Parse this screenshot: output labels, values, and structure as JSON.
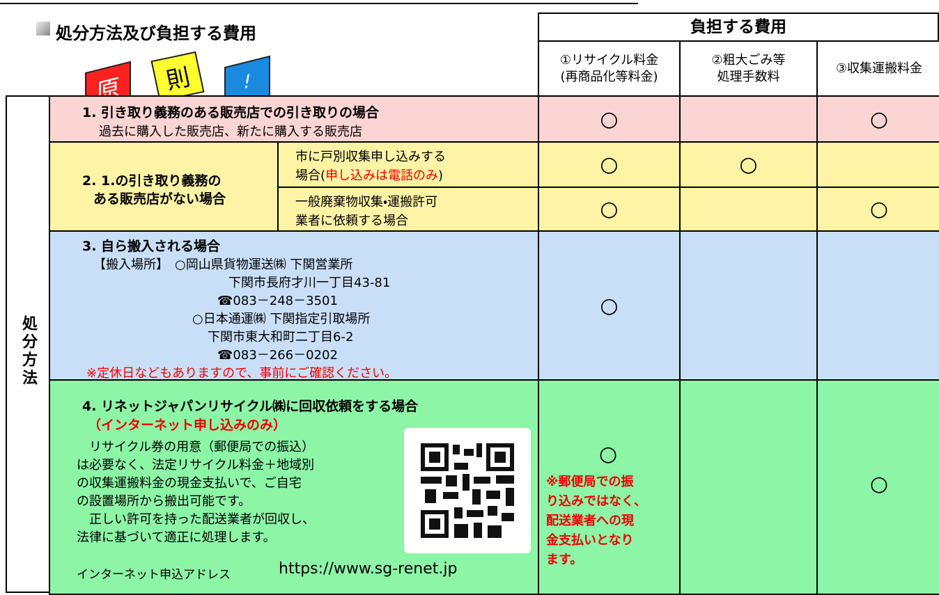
{
  "header": {
    "title": "処分方法及び負担する費用",
    "badges": [
      "原",
      "則",
      "!"
    ],
    "cost_title": "負担する費用",
    "cost_columns": [
      [
        "①リサイクル料金",
        "(再商品化等料金)"
      ],
      [
        "②粗大ごみ等",
        "処理手数料"
      ],
      [
        "③収集運搬料金"
      ]
    ]
  },
  "side_label": "処分方法",
  "rows": [
    {
      "title": "1. 引き取り義務のある販売店での引き取りの場合",
      "sub": "過去に購入した販売店、新たに購入する販売店",
      "marks": [
        "○",
        null,
        "○"
      ]
    },
    {
      "title": [
        "2. 1.の引き取り義務の",
        "ある販売店がない場合"
      ],
      "cases": [
        {
          "line1": "市に戸別収集申し込みする",
          "line2": [
            "場合(",
            "申し込みは電話のみ",
            ")"
          ],
          "marks": [
            "○",
            "○",
            null
          ]
        },
        {
          "lines": [
            "一般廃棄物収集・運搬許可",
            "業者に依頼する場合"
          ],
          "marks": [
            "○",
            null,
            "○"
          ]
        }
      ]
    },
    {
      "title": "3. 自ら搬入される場合",
      "lines": [
        "【搬入場所】　○岡山県貨物運送㈱ 下関営業所",
        "下関市長府才川一丁目43-81",
        "☎083－248－3501",
        "○日本通運㈱ 下関指定引取場所",
        "下関市東大和町二丁目6-2",
        "☎083－266－0202"
      ],
      "note": "※定休日などもありますので、事前にご確認ください。",
      "marks": [
        "○",
        null,
        null
      ]
    },
    {
      "title": "4. リネットジャパンリサイクル㈱に回収依頼をする場合",
      "subtitle": "（インターネット申し込みのみ）",
      "lines": [
        "　リサイクル券の用意（郵便局での振込）",
        "は必要なく、法定リサイクル料金＋地域別",
        "の収集運搬料金の現金支払いで、ご自宅",
        "の設置場所から搬出可能です。",
        "　正しい許可を持った配送業者が回収し、",
        "法律に基づいて適正に処理します。"
      ],
      "url_label": "インターネット申込アドレス",
      "url": "https://www.sg-renet.jp",
      "marks": [
        "○",
        null,
        "○"
      ],
      "mark_note": [
        "※郵便局での振",
        "り込みではなく、",
        "配送業者への現",
        "金支払いとなり",
        "ます。"
      ]
    }
  ]
}
